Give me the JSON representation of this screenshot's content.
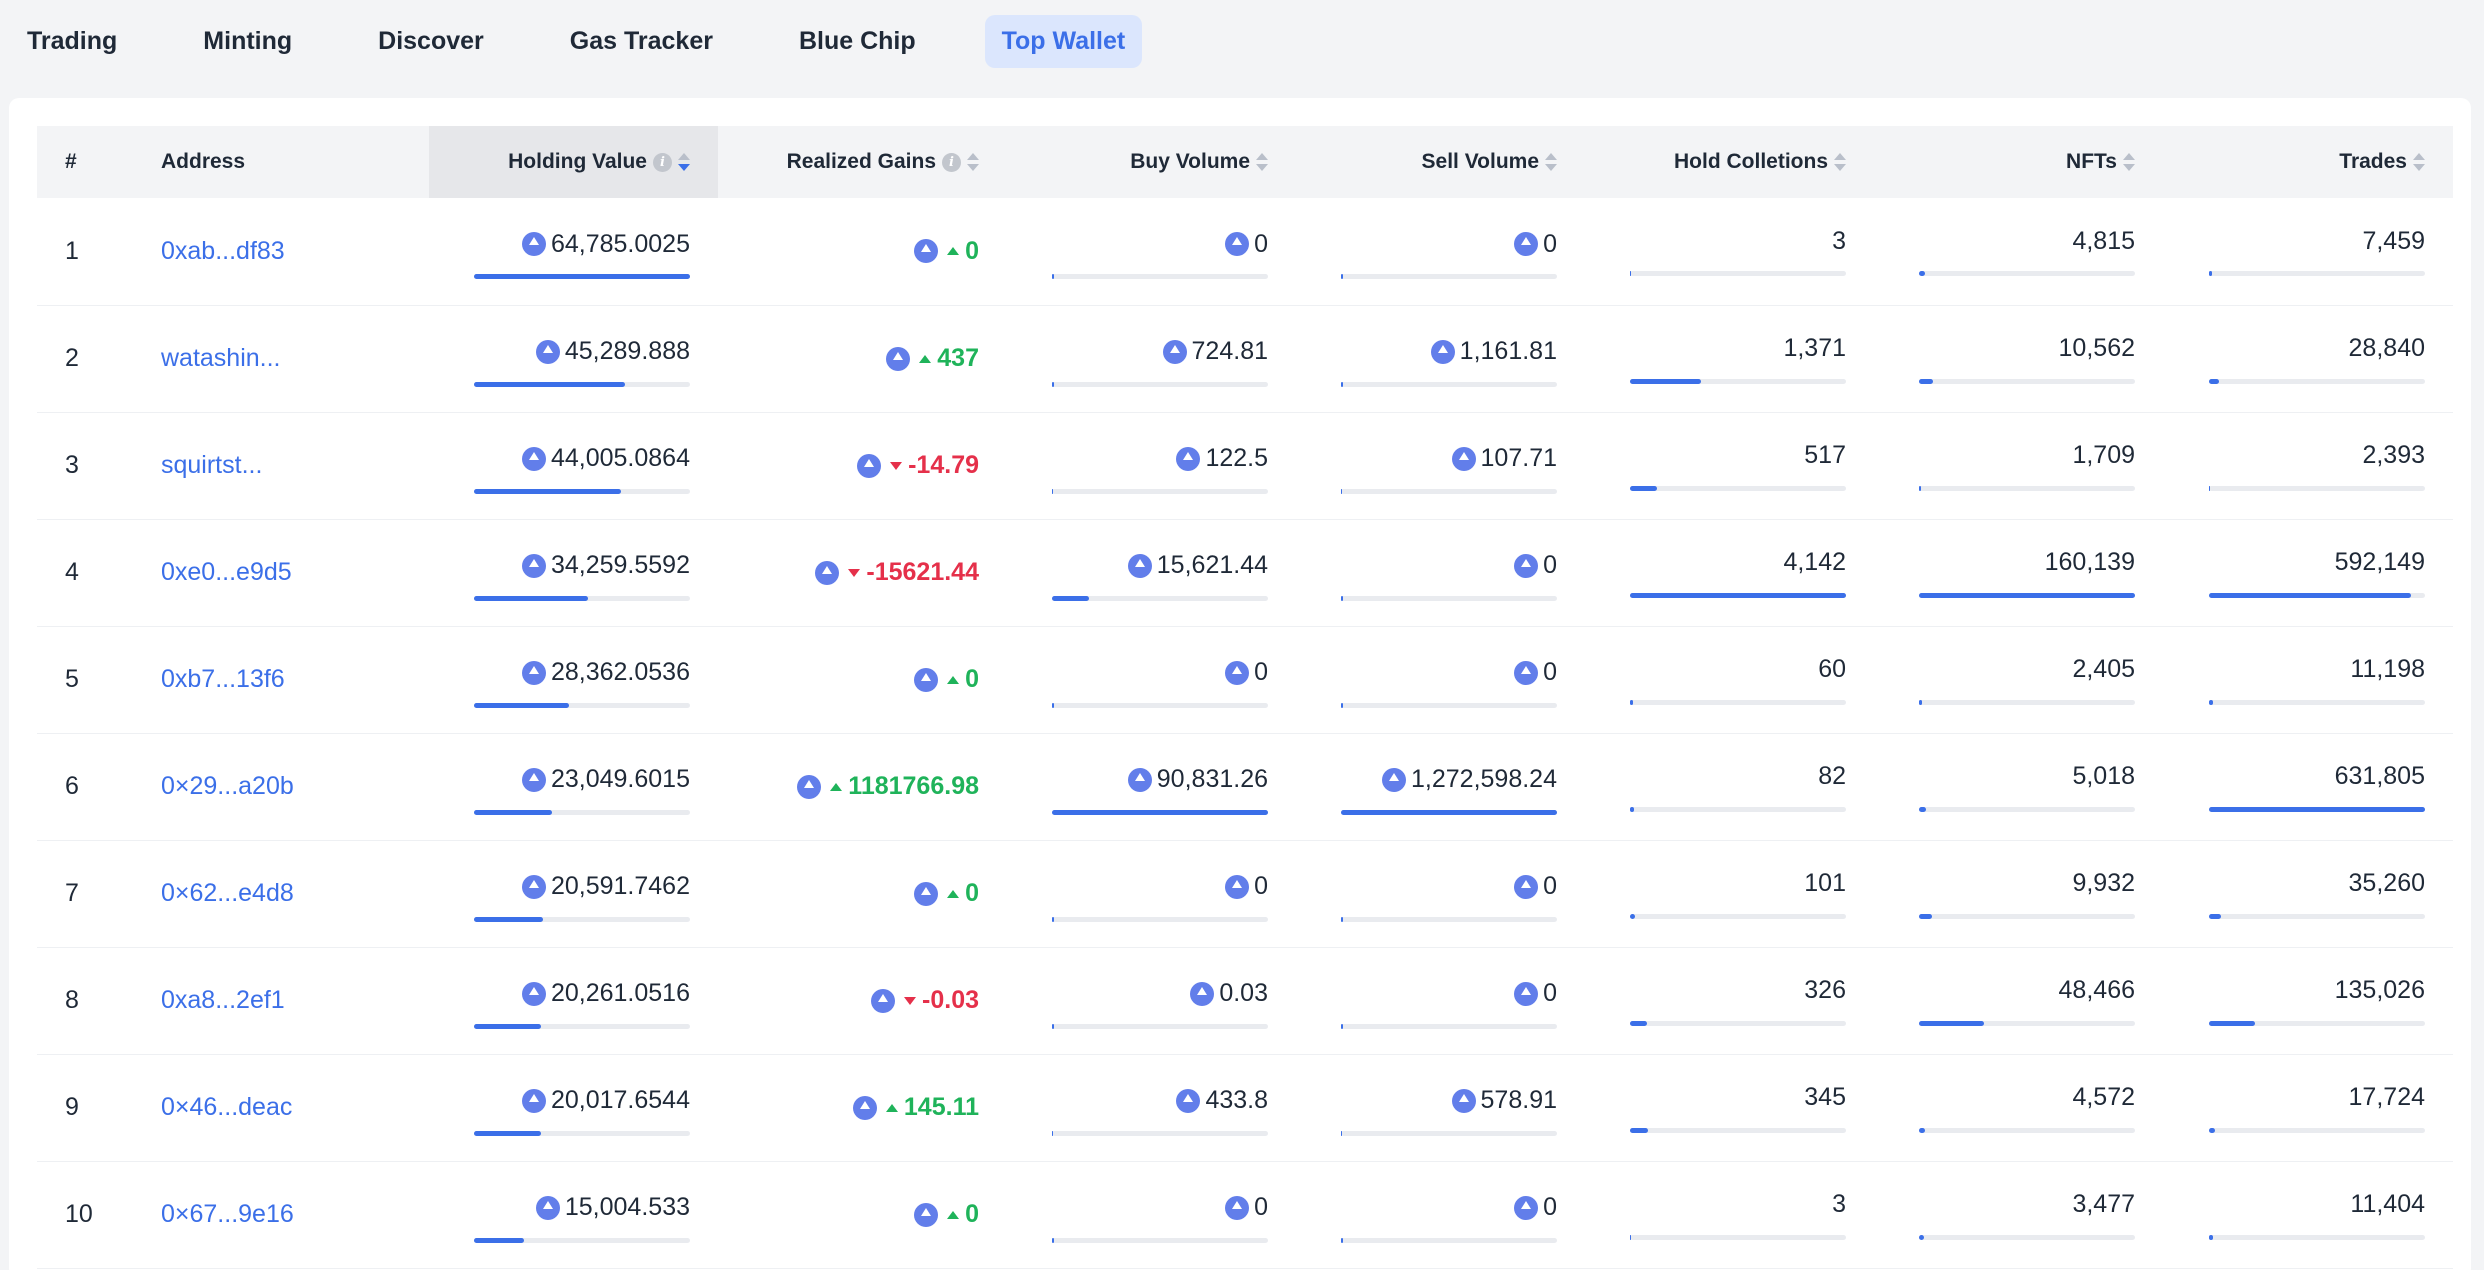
{
  "tabs": [
    "Trading",
    "Minting",
    "Discover",
    "Gas Tracker",
    "Blue Chip",
    "Top Wallet"
  ],
  "active_tab": "Top Wallet",
  "table": {
    "headers": {
      "rank": "#",
      "address": "Address",
      "holding_value": "Holding Value",
      "realized_gains": "Realized Gains",
      "buy_volume": "Buy Volume",
      "sell_volume": "Sell Volume",
      "hold_collections": "Hold Colletions",
      "nfts": "NFTs",
      "trades": "Trades"
    },
    "sorted_by": "Holding Value",
    "sort_direction": "desc",
    "rows": [
      {
        "rank": "1",
        "address": "0xab...df83",
        "holding_value": "64,785.0025",
        "holding_pct": 1.0,
        "gain": "0",
        "gain_dir": "up",
        "buy": "0",
        "buy_pct": 0.0,
        "sell": "0",
        "sell_pct": 0.0,
        "collections": "3",
        "col_pct": 0.005,
        "nfts": "4,815",
        "nfts_pct": 0.03,
        "trades": "7,459",
        "trades_pct": 0.012
      },
      {
        "rank": "2",
        "address": "watashin...",
        "holding_value": "45,289.888",
        "holding_pct": 0.7,
        "gain": "437",
        "gain_dir": "up",
        "buy": "724.81",
        "buy_pct": 0.008,
        "sell": "1,161.81",
        "sell_pct": 0.009,
        "collections": "1,371",
        "col_pct": 0.33,
        "nfts": "10,562",
        "nfts_pct": 0.066,
        "trades": "28,840",
        "trades_pct": 0.046
      },
      {
        "rank": "3",
        "address": "squirtst...",
        "holding_value": "44,005.0864",
        "holding_pct": 0.68,
        "gain": "-14.79",
        "gain_dir": "down",
        "buy": "122.5",
        "buy_pct": 0.002,
        "sell": "107.71",
        "sell_pct": 0.001,
        "collections": "517",
        "col_pct": 0.125,
        "nfts": "1,709",
        "nfts_pct": 0.011,
        "trades": "2,393",
        "trades_pct": 0.004
      },
      {
        "rank": "4",
        "address": "0xe0...e9d5",
        "holding_value": "34,259.5592",
        "holding_pct": 0.53,
        "gain": "-15621.44",
        "gain_dir": "down",
        "buy": "15,621.44",
        "buy_pct": 0.172,
        "sell": "0",
        "sell_pct": 0.0,
        "collections": "4,142",
        "col_pct": 1.0,
        "nfts": "160,139",
        "nfts_pct": 1.0,
        "trades": "592,149",
        "trades_pct": 0.937
      },
      {
        "rank": "5",
        "address": "0xb7...13f6",
        "holding_value": "28,362.0536",
        "holding_pct": 0.44,
        "gain": "0",
        "gain_dir": "up",
        "buy": "0",
        "buy_pct": 0.0,
        "sell": "0",
        "sell_pct": 0.0,
        "collections": "60",
        "col_pct": 0.015,
        "nfts": "2,405",
        "nfts_pct": 0.015,
        "trades": "11,198",
        "trades_pct": 0.018
      },
      {
        "rank": "6",
        "address": "0×29...a20b",
        "holding_value": "23,049.6015",
        "holding_pct": 0.36,
        "gain": "1181766.98",
        "gain_dir": "up",
        "buy": "90,831.26",
        "buy_pct": 1.0,
        "sell": "1,272,598.24",
        "sell_pct": 1.0,
        "collections": "82",
        "col_pct": 0.02,
        "nfts": "5,018",
        "nfts_pct": 0.031,
        "trades": "631,805",
        "trades_pct": 1.0
      },
      {
        "rank": "7",
        "address": "0×62...e4d8",
        "holding_value": "20,591.7462",
        "holding_pct": 0.32,
        "gain": "0",
        "gain_dir": "up",
        "buy": "0",
        "buy_pct": 0.0,
        "sell": "0",
        "sell_pct": 0.0,
        "collections": "101",
        "col_pct": 0.024,
        "nfts": "9,932",
        "nfts_pct": 0.062,
        "trades": "35,260",
        "trades_pct": 0.056
      },
      {
        "rank": "8",
        "address": "0xa8...2ef1",
        "holding_value": "20,261.0516",
        "holding_pct": 0.31,
        "gain": "-0.03",
        "gain_dir": "down",
        "buy": "0.03",
        "buy_pct": 0.0,
        "sell": "0",
        "sell_pct": 0.0,
        "collections": "326",
        "col_pct": 0.079,
        "nfts": "48,466",
        "nfts_pct": 0.303,
        "trades": "135,026",
        "trades_pct": 0.214
      },
      {
        "rank": "9",
        "address": "0×46...deac",
        "holding_value": "20,017.6544",
        "holding_pct": 0.31,
        "gain": "145.11",
        "gain_dir": "up",
        "buy": "433.8",
        "buy_pct": 0.005,
        "sell": "578.91",
        "sell_pct": 0.005,
        "collections": "345",
        "col_pct": 0.083,
        "nfts": "4,572",
        "nfts_pct": 0.029,
        "trades": "17,724",
        "trades_pct": 0.028
      },
      {
        "rank": "10",
        "address": "0×67...9e16",
        "holding_value": "15,004.533",
        "holding_pct": 0.23,
        "gain": "0",
        "gain_dir": "up",
        "buy": "0",
        "buy_pct": 0.0,
        "sell": "0",
        "sell_pct": 0.0,
        "collections": "3",
        "col_pct": 0.005,
        "nfts": "3,477",
        "nfts_pct": 0.022,
        "trades": "11,404",
        "trades_pct": 0.018
      }
    ]
  },
  "colors": {
    "accent": "#3b6fe8",
    "positive": "#1fb35a",
    "negative": "#e5304a",
    "eth": "#627eea"
  }
}
